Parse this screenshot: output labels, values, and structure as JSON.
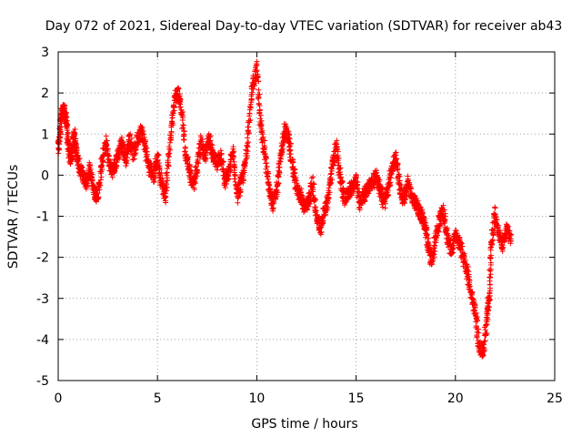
{
  "chart_data": {
    "type": "scatter",
    "title": "Day 072 of 2021, Sidereal Day-to-day VTEC variation (SDTVAR) for receiver ab43",
    "xlabel": "GPS time / hours",
    "ylabel": "SDTVAR / TECUs",
    "xlim": [
      0,
      25
    ],
    "ylim": [
      -5,
      3
    ],
    "xticks": [
      0,
      5,
      10,
      15,
      20,
      25
    ],
    "yticks": [
      -5,
      -4,
      -3,
      -2,
      -1,
      0,
      1,
      2,
      3
    ],
    "grid": true,
    "marker": "+",
    "color": "#ff0000",
    "series": [
      {
        "name": "SDTVAR",
        "trace": [
          [
            0.0,
            0.6
          ],
          [
            0.1,
            1.2
          ],
          [
            0.2,
            1.5
          ],
          [
            0.3,
            1.6
          ],
          [
            0.4,
            1.3
          ],
          [
            0.5,
            0.8
          ],
          [
            0.6,
            0.4
          ],
          [
            0.7,
            0.6
          ],
          [
            0.8,
            1.0
          ],
          [
            0.9,
            0.6
          ],
          [
            1.0,
            0.3
          ],
          [
            1.2,
            0.0
          ],
          [
            1.4,
            -0.2
          ],
          [
            1.6,
            0.2
          ],
          [
            1.8,
            -0.4
          ],
          [
            2.0,
            -0.5
          ],
          [
            2.2,
            0.3
          ],
          [
            2.4,
            0.8
          ],
          [
            2.6,
            0.2
          ],
          [
            2.8,
            0.1
          ],
          [
            3.0,
            0.5
          ],
          [
            3.2,
            0.8
          ],
          [
            3.4,
            0.4
          ],
          [
            3.6,
            0.9
          ],
          [
            3.8,
            0.5
          ],
          [
            4.0,
            0.9
          ],
          [
            4.2,
            1.1
          ],
          [
            4.4,
            0.6
          ],
          [
            4.6,
            0.2
          ],
          [
            4.8,
            0.0
          ],
          [
            5.0,
            0.4
          ],
          [
            5.2,
            -0.2
          ],
          [
            5.4,
            -0.5
          ],
          [
            5.6,
            0.6
          ],
          [
            5.8,
            1.6
          ],
          [
            6.0,
            2.1
          ],
          [
            6.2,
            1.6
          ],
          [
            6.4,
            0.6
          ],
          [
            6.6,
            0.1
          ],
          [
            6.8,
            -0.3
          ],
          [
            7.0,
            0.2
          ],
          [
            7.2,
            0.8
          ],
          [
            7.4,
            0.5
          ],
          [
            7.6,
            0.9
          ],
          [
            7.8,
            0.4
          ],
          [
            8.0,
            0.3
          ],
          [
            8.2,
            0.5
          ],
          [
            8.4,
            -0.2
          ],
          [
            8.6,
            0.1
          ],
          [
            8.8,
            0.6
          ],
          [
            9.0,
            -0.5
          ],
          [
            9.2,
            -0.2
          ],
          [
            9.4,
            0.2
          ],
          [
            9.6,
            1.2
          ],
          [
            9.8,
            2.2
          ],
          [
            10.0,
            2.6
          ],
          [
            10.2,
            1.2
          ],
          [
            10.4,
            0.6
          ],
          [
            10.6,
            -0.3
          ],
          [
            10.8,
            -0.7
          ],
          [
            11.0,
            -0.4
          ],
          [
            11.2,
            0.4
          ],
          [
            11.4,
            1.1
          ],
          [
            11.6,
            0.9
          ],
          [
            11.8,
            0.2
          ],
          [
            12.0,
            -0.3
          ],
          [
            12.2,
            -0.5
          ],
          [
            12.4,
            -0.8
          ],
          [
            12.6,
            -0.7
          ],
          [
            12.8,
            -0.2
          ],
          [
            13.0,
            -1.0
          ],
          [
            13.2,
            -1.3
          ],
          [
            13.4,
            -0.9
          ],
          [
            13.6,
            -0.5
          ],
          [
            13.8,
            0.2
          ],
          [
            14.0,
            0.7
          ],
          [
            14.2,
            0.0
          ],
          [
            14.4,
            -0.6
          ],
          [
            14.6,
            -0.4
          ],
          [
            14.8,
            -0.3
          ],
          [
            15.0,
            -0.1
          ],
          [
            15.2,
            -0.7
          ],
          [
            15.4,
            -0.5
          ],
          [
            15.6,
            -0.3
          ],
          [
            15.8,
            -0.2
          ],
          [
            16.0,
            0.0
          ],
          [
            16.2,
            -0.3
          ],
          [
            16.4,
            -0.7
          ],
          [
            16.6,
            -0.4
          ],
          [
            16.8,
            0.2
          ],
          [
            17.0,
            0.4
          ],
          [
            17.2,
            -0.3
          ],
          [
            17.4,
            -0.6
          ],
          [
            17.6,
            -0.2
          ],
          [
            17.8,
            -0.5
          ],
          [
            18.0,
            -0.7
          ],
          [
            18.2,
            -0.9
          ],
          [
            18.4,
            -1.1
          ],
          [
            18.6,
            -1.6
          ],
          [
            18.8,
            -2.1
          ],
          [
            19.0,
            -1.5
          ],
          [
            19.2,
            -1.1
          ],
          [
            19.4,
            -0.9
          ],
          [
            19.6,
            -1.5
          ],
          [
            19.8,
            -1.9
          ],
          [
            20.0,
            -1.4
          ],
          [
            20.2,
            -1.7
          ],
          [
            20.4,
            -2.0
          ],
          [
            20.6,
            -2.4
          ],
          [
            20.8,
            -2.9
          ],
          [
            21.0,
            -3.3
          ],
          [
            21.2,
            -4.2
          ],
          [
            21.4,
            -4.3
          ],
          [
            21.6,
            -3.5
          ],
          [
            21.7,
            -3.0
          ],
          [
            21.8,
            -1.8
          ],
          [
            22.0,
            -0.9
          ],
          [
            22.2,
            -1.5
          ],
          [
            22.4,
            -1.7
          ],
          [
            22.6,
            -1.3
          ],
          [
            22.8,
            -1.6
          ]
        ]
      }
    ]
  }
}
